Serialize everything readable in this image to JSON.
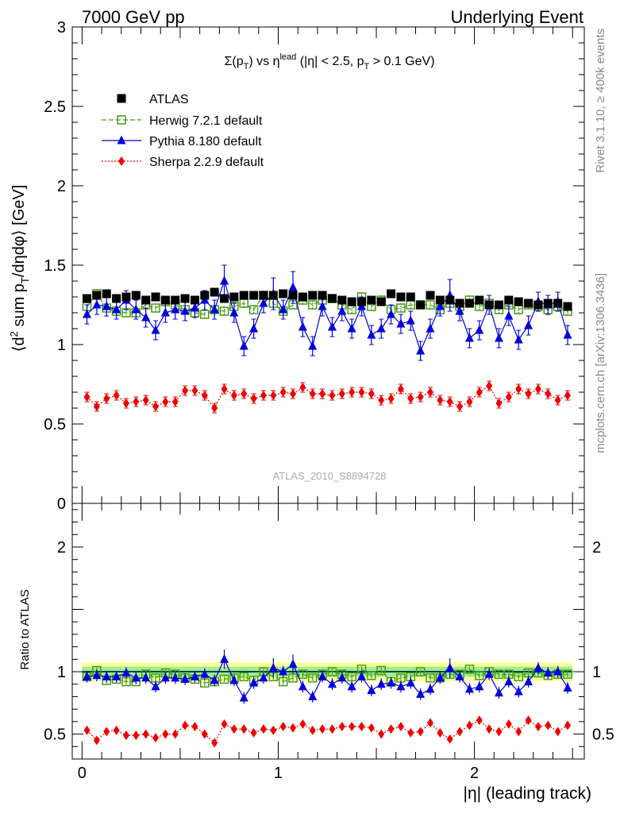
{
  "header": {
    "left": "7000 GeV pp",
    "right": "Underlying Event"
  },
  "side_labels": {
    "rivet": "Rivet 3.1.10, ≥ 400k events",
    "mcplots": "mcplots.cern.ch [arXiv:1306.3436]"
  },
  "plot_title": {
    "main": "Σ(p",
    "sub1": "T",
    "mid": ") vs η",
    "sup": "lead",
    "rest1": " (|η| < 2.5, p",
    "sub2": "T",
    "rest2": " > 0.1 GeV)"
  },
  "analysis_id": "ATLAS_2010_S8894728",
  "colors": {
    "atlas": "#000000",
    "herwig": "#4a9a1a",
    "pythia": "#0000dd",
    "sherpa": "#ee0000",
    "band_yellow": "#ffff99",
    "band_green": "#99ee99"
  },
  "chart_data": [
    {
      "type": "scatter",
      "panel": "main",
      "ylabel": "⟨d² sum p_T/dηdφ⟩ [GeV]",
      "ylabel_parts": {
        "a": "⟨d",
        "sup": "2",
        "b": " sum p",
        "sub": "T",
        "c": "/dηdφ⟩ [GeV]"
      },
      "xlim": [
        -0.05,
        2.56
      ],
      "ylim": [
        0,
        3
      ],
      "y_ticks": [
        {
          "v": 0,
          "label": "0"
        },
        {
          "v": 0.5,
          "label": "0.5"
        },
        {
          "v": 1,
          "label": "1"
        },
        {
          "v": 1.5,
          "label": "1.5"
        },
        {
          "v": 2,
          "label": "2"
        },
        {
          "v": 2.5,
          "label": "2.5"
        },
        {
          "v": 3,
          "label": "3"
        }
      ],
      "x": [
        0.025,
        0.075,
        0.125,
        0.175,
        0.225,
        0.275,
        0.325,
        0.375,
        0.425,
        0.475,
        0.525,
        0.575,
        0.625,
        0.675,
        0.725,
        0.775,
        0.825,
        0.875,
        0.925,
        0.975,
        1.025,
        1.075,
        1.125,
        1.175,
        1.225,
        1.275,
        1.325,
        1.375,
        1.425,
        1.475,
        1.525,
        1.575,
        1.625,
        1.675,
        1.725,
        1.775,
        1.825,
        1.875,
        1.925,
        1.975,
        2.025,
        2.075,
        2.125,
        2.175,
        2.225,
        2.275,
        2.325,
        2.375,
        2.425,
        2.475
      ],
      "series": [
        {
          "name": "ATLAS",
          "marker": "square",
          "values": [
            1.29,
            1.31,
            1.32,
            1.29,
            1.3,
            1.31,
            1.28,
            1.3,
            1.28,
            1.28,
            1.29,
            1.28,
            1.31,
            1.33,
            1.29,
            1.3,
            1.31,
            1.31,
            1.31,
            1.31,
            1.32,
            1.31,
            1.3,
            1.31,
            1.31,
            1.29,
            1.28,
            1.27,
            1.27,
            1.28,
            1.27,
            1.32,
            1.3,
            1.3,
            1.25,
            1.31,
            1.28,
            1.28,
            1.26,
            1.26,
            1.28,
            1.25,
            1.25,
            1.28,
            1.27,
            1.26,
            1.25,
            1.26,
            1.26,
            1.24
          ],
          "errors": [
            0.02,
            0.02,
            0.02,
            0.02,
            0.02,
            0.02,
            0.02,
            0.02,
            0.02,
            0.02,
            0.02,
            0.02,
            0.02,
            0.02,
            0.02,
            0.02,
            0.02,
            0.02,
            0.02,
            0.02,
            0.02,
            0.02,
            0.02,
            0.02,
            0.02,
            0.02,
            0.02,
            0.02,
            0.02,
            0.02,
            0.02,
            0.02,
            0.02,
            0.02,
            0.02,
            0.02,
            0.02,
            0.02,
            0.02,
            0.02,
            0.02,
            0.02,
            0.02,
            0.02,
            0.02,
            0.02,
            0.02,
            0.02,
            0.02,
            0.02
          ]
        },
        {
          "name": "Herwig 7.2.1 default",
          "marker": "open-square",
          "values": [
            1.24,
            1.32,
            1.23,
            1.21,
            1.2,
            1.2,
            1.25,
            1.23,
            1.27,
            1.25,
            1.22,
            1.2,
            1.19,
            1.22,
            1.21,
            1.24,
            1.26,
            1.22,
            1.31,
            1.26,
            1.21,
            1.25,
            1.28,
            1.25,
            1.28,
            1.29,
            1.25,
            1.22,
            1.3,
            1.24,
            1.28,
            1.22,
            1.23,
            1.25,
            1.25,
            1.25,
            1.22,
            1.26,
            1.24,
            1.28,
            1.24,
            1.26,
            1.22,
            1.25,
            1.22,
            1.25,
            1.24,
            1.22,
            1.24,
            1.21
          ],
          "errors": [
            0.03,
            0.03,
            0.03,
            0.03,
            0.03,
            0.03,
            0.03,
            0.03,
            0.03,
            0.03,
            0.03,
            0.03,
            0.03,
            0.03,
            0.03,
            0.03,
            0.03,
            0.03,
            0.03,
            0.03,
            0.03,
            0.03,
            0.03,
            0.03,
            0.03,
            0.03,
            0.03,
            0.03,
            0.03,
            0.03,
            0.03,
            0.03,
            0.03,
            0.03,
            0.03,
            0.03,
            0.03,
            0.03,
            0.03,
            0.03,
            0.03,
            0.03,
            0.03,
            0.03,
            0.03,
            0.03,
            0.03,
            0.03,
            0.03,
            0.03
          ]
        },
        {
          "name": "Pythia 8.180 default",
          "marker": "triangle",
          "values": [
            1.19,
            1.25,
            1.24,
            1.22,
            1.28,
            1.22,
            1.17,
            1.09,
            1.2,
            1.22,
            1.21,
            1.23,
            1.28,
            1.22,
            1.4,
            1.2,
            0.99,
            1.1,
            1.26,
            1.32,
            1.22,
            1.36,
            1.11,
            0.99,
            1.24,
            1.11,
            1.21,
            1.1,
            1.24,
            1.06,
            1.1,
            1.19,
            1.13,
            1.15,
            0.96,
            1.1,
            1.24,
            1.31,
            1.21,
            1.04,
            1.09,
            1.25,
            1.04,
            1.18,
            1.03,
            1.12,
            1.27,
            1.25,
            1.27,
            1.06
          ],
          "errors": [
            0.06,
            0.06,
            0.06,
            0.06,
            0.06,
            0.06,
            0.06,
            0.06,
            0.06,
            0.06,
            0.06,
            0.06,
            0.06,
            0.06,
            0.1,
            0.06,
            0.06,
            0.06,
            0.06,
            0.1,
            0.06,
            0.1,
            0.06,
            0.06,
            0.06,
            0.06,
            0.06,
            0.06,
            0.06,
            0.06,
            0.06,
            0.06,
            0.06,
            0.06,
            0.06,
            0.06,
            0.06,
            0.1,
            0.06,
            0.06,
            0.06,
            0.06,
            0.06,
            0.06,
            0.06,
            0.06,
            0.06,
            0.06,
            0.06,
            0.06
          ]
        },
        {
          "name": "Sherpa 2.2.9 default",
          "marker": "diamond",
          "values": [
            0.67,
            0.61,
            0.66,
            0.68,
            0.63,
            0.64,
            0.65,
            0.61,
            0.64,
            0.64,
            0.71,
            0.71,
            0.68,
            0.6,
            0.72,
            0.68,
            0.69,
            0.66,
            0.68,
            0.68,
            0.7,
            0.69,
            0.73,
            0.69,
            0.69,
            0.68,
            0.69,
            0.7,
            0.7,
            0.69,
            0.65,
            0.66,
            0.72,
            0.66,
            0.67,
            0.7,
            0.65,
            0.64,
            0.61,
            0.64,
            0.7,
            0.74,
            0.63,
            0.67,
            0.72,
            0.69,
            0.72,
            0.69,
            0.65,
            0.68
          ],
          "errors": [
            0.03,
            0.03,
            0.03,
            0.03,
            0.03,
            0.03,
            0.03,
            0.03,
            0.03,
            0.03,
            0.03,
            0.03,
            0.03,
            0.03,
            0.03,
            0.03,
            0.03,
            0.03,
            0.03,
            0.03,
            0.03,
            0.03,
            0.03,
            0.03,
            0.03,
            0.03,
            0.03,
            0.03,
            0.03,
            0.03,
            0.03,
            0.03,
            0.03,
            0.03,
            0.03,
            0.03,
            0.03,
            0.03,
            0.03,
            0.03,
            0.03,
            0.03,
            0.03,
            0.03,
            0.03,
            0.03,
            0.03,
            0.03,
            0.03,
            0.03
          ]
        }
      ]
    },
    {
      "type": "scatter",
      "panel": "ratio",
      "ylabel": "Ratio to ATLAS",
      "xlabel": "|η| (leading track)",
      "xlim": [
        -0.05,
        2.56
      ],
      "ylim": [
        0.3,
        2.35
      ],
      "x_ticks": [
        {
          "v": 0,
          "label": "0"
        },
        {
          "v": 1,
          "label": "1"
        },
        {
          "v": 2,
          "label": "2"
        }
      ],
      "y_ticks": [
        {
          "v": 0.5,
          "label": "0.5"
        },
        {
          "v": 1,
          "label": "1"
        },
        {
          "v": 2,
          "label": "2"
        }
      ],
      "bands": {
        "yellow": 0.075,
        "green": 0.04
      },
      "series": [
        {
          "name": "Herwig 7.2.1 default",
          "values": [
            0.96,
            1.01,
            0.93,
            0.94,
            0.92,
            0.92,
            0.98,
            0.95,
            0.99,
            0.98,
            0.95,
            0.94,
            0.91,
            0.92,
            0.94,
            0.95,
            0.96,
            0.93,
            1.0,
            0.96,
            0.92,
            0.95,
            0.98,
            0.95,
            0.98,
            1.0,
            0.98,
            0.96,
            1.02,
            0.97,
            1.01,
            0.92,
            0.95,
            0.96,
            1.0,
            0.95,
            0.95,
            0.98,
            0.98,
            1.02,
            0.97,
            1.0,
            0.98,
            0.98,
            0.96,
            0.99,
            0.99,
            0.97,
            0.98,
            0.98
          ]
        },
        {
          "name": "Pythia 8.180 default",
          "values": [
            0.96,
            0.97,
            0.96,
            0.96,
            0.99,
            0.95,
            0.95,
            0.88,
            0.95,
            0.95,
            0.94,
            0.96,
            0.98,
            0.93,
            1.1,
            0.93,
            0.79,
            0.91,
            0.95,
            1.03,
            1.0,
            1.06,
            0.88,
            0.8,
            0.96,
            0.9,
            0.95,
            0.88,
            0.96,
            0.85,
            0.9,
            0.91,
            0.88,
            0.91,
            0.82,
            0.86,
            0.95,
            1.03,
            0.96,
            0.86,
            0.88,
            0.98,
            0.83,
            0.92,
            0.84,
            0.92,
            1.03,
            0.99,
            1.0,
            0.87
          ]
        },
        {
          "name": "Sherpa 2.2.9 default",
          "values": [
            0.53,
            0.45,
            0.52,
            0.53,
            0.49,
            0.49,
            0.5,
            0.47,
            0.5,
            0.5,
            0.57,
            0.56,
            0.5,
            0.43,
            0.58,
            0.54,
            0.54,
            0.51,
            0.54,
            0.53,
            0.56,
            0.55,
            0.58,
            0.53,
            0.54,
            0.54,
            0.56,
            0.56,
            0.56,
            0.55,
            0.5,
            0.54,
            0.56,
            0.51,
            0.52,
            0.59,
            0.51,
            0.46,
            0.52,
            0.57,
            0.61,
            0.54,
            0.52,
            0.58,
            0.52,
            0.61,
            0.56,
            0.57,
            0.52,
            0.57
          ]
        }
      ]
    }
  ]
}
